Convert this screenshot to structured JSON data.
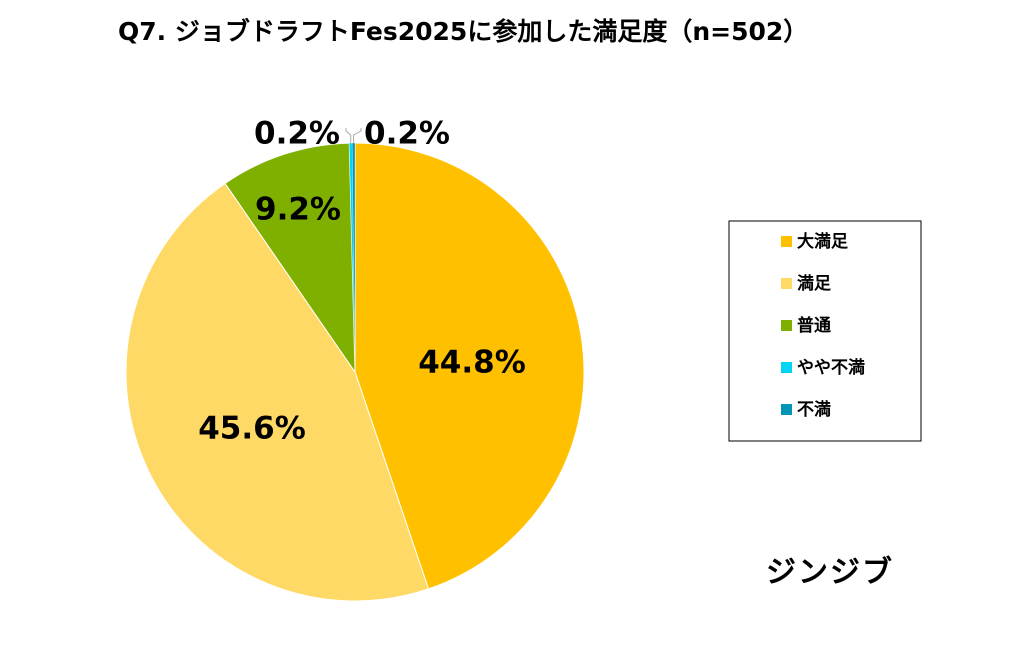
{
  "chart_data": {
    "type": "pie",
    "title": "Q7. ジョブドラフトFes2025に参加した満足度（n=502）",
    "categories": [
      "大満足",
      "満足",
      "普通",
      "やや不満",
      "不満"
    ],
    "values": [
      44.8,
      45.6,
      9.2,
      0.2,
      0.2
    ],
    "value_labels": [
      "44.8%",
      "45.6%",
      "9.2%",
      "0.2%",
      "0.2%"
    ],
    "colors": [
      "#FFC000",
      "#FFD966",
      "#7FB000",
      "#00D4F5",
      "#0096B4"
    ],
    "legend_placement": "right"
  },
  "brand": "ジンジブ"
}
